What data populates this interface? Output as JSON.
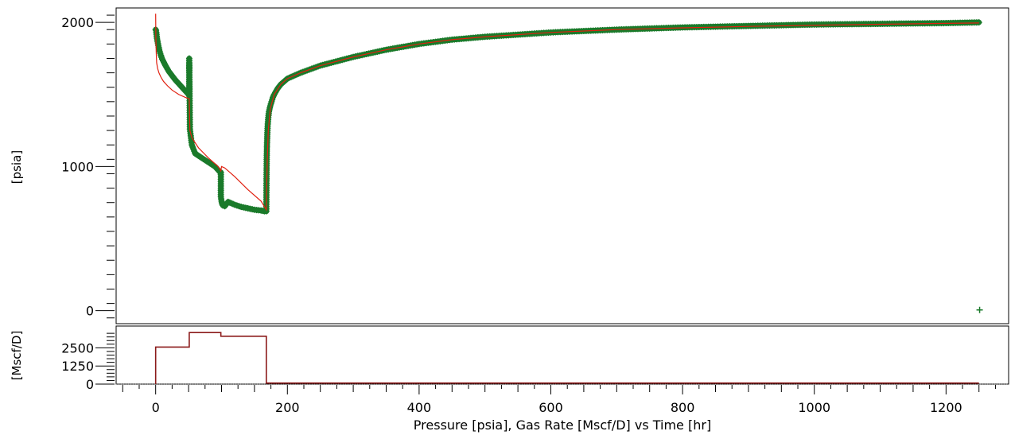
{
  "chart_data": [
    {
      "type": "line",
      "ylabel": "[psia]",
      "xlim": [
        -60,
        1295
      ],
      "ylim": [
        -90,
        2100
      ],
      "yticks": [
        0,
        1000,
        2000
      ],
      "grid": false,
      "colors": {
        "measured": "#1a7a2a",
        "model": "#e02010"
      },
      "series": [
        {
          "role": "measured",
          "marker": "+",
          "segments": [
            {
              "x": [
                0,
                0.5,
                1,
                2,
                4,
                6,
                8,
                10,
                15,
                20,
                25,
                30,
                35,
                40,
                45,
                50,
                51
              ],
              "y": [
                1950,
                1945,
                1930,
                1890,
                1840,
                1800,
                1770,
                1745,
                1700,
                1660,
                1630,
                1600,
                1575,
                1550,
                1525,
                1500,
                1490
              ]
            },
            {
              "x": [
                51,
                51,
                51,
                51,
                51,
                52,
                55,
                60,
                70,
                80,
                90,
                95,
                98
              ],
              "y": [
                1490,
                1560,
                1650,
                1720,
                1750,
                1260,
                1150,
                1090,
                1060,
                1030,
                1000,
                975,
                960
              ]
            },
            {
              "x": [
                99,
                99,
                99,
                100,
                101,
                102,
                105,
                110,
                120,
                130,
                140,
                150,
                160,
                165,
                168
              ],
              "y": [
                960,
                880,
                790,
                760,
                740,
                730,
                725,
                755,
                735,
                720,
                710,
                700,
                695,
                690,
                690
              ]
            },
            {
              "x": [
                168,
                168.3,
                168.6,
                169,
                169.5,
                170,
                171,
                172,
                174,
                176,
                178,
                180,
                185,
                190,
                200,
                220,
                250,
                300,
                350,
                400,
                450,
                500,
                600,
                700,
                800,
                900,
                1000,
                1100,
                1200,
                1250
              ],
              "y": [
                690,
                900,
                1050,
                1150,
                1220,
                1280,
                1340,
                1380,
                1420,
                1450,
                1480,
                1500,
                1540,
                1570,
                1610,
                1650,
                1700,
                1760,
                1810,
                1850,
                1880,
                1900,
                1930,
                1950,
                1965,
                1975,
                1985,
                1990,
                1995,
                2000
              ]
            }
          ],
          "outlier": {
            "x": 1251,
            "y": 5
          }
        },
        {
          "role": "model",
          "x": [
            0,
            0.3,
            0.8,
            1.5,
            3,
            5,
            8,
            12,
            18,
            25,
            35,
            45,
            51,
            52,
            55,
            65,
            80,
            95,
            99,
            100,
            105,
            120,
            140,
            160,
            168,
            168.5,
            169.5,
            171,
            174,
            180,
            190,
            200,
            220,
            250,
            300,
            350,
            400,
            450,
            500,
            600,
            700,
            800,
            900,
            1000,
            1100,
            1200,
            1250
          ],
          "y": [
            2060,
            1900,
            1800,
            1720,
            1680,
            1650,
            1620,
            1590,
            1560,
            1530,
            1500,
            1480,
            1470,
            1250,
            1200,
            1130,
            1060,
            1000,
            970,
            1000,
            990,
            930,
            840,
            760,
            700,
            850,
            1050,
            1250,
            1400,
            1500,
            1570,
            1610,
            1650,
            1700,
            1760,
            1810,
            1850,
            1880,
            1900,
            1930,
            1950,
            1962,
            1972,
            1980,
            1987,
            1993,
            1996
          ]
        }
      ]
    },
    {
      "type": "line",
      "ylabel": "[Mscf/D]",
      "xlabel": "Pressure [psia], Gas Rate [Mscf/D] vs Time [hr]",
      "xlim": [
        -60,
        1295
      ],
      "ylim": [
        0,
        4000
      ],
      "yticks": [
        0,
        1250,
        2500
      ],
      "xticks": [
        0,
        200,
        400,
        600,
        800,
        1000,
        1200
      ],
      "grid": false,
      "colors": {
        "rate": "#8b1a1a"
      },
      "series": [
        {
          "role": "rate",
          "step": true,
          "x": [
            0,
            0,
            51,
            51,
            99,
            99,
            168,
            168,
            1250
          ],
          "y": [
            0,
            2550,
            2550,
            3550,
            3550,
            3300,
            3300,
            70,
            70
          ]
        }
      ]
    }
  ]
}
